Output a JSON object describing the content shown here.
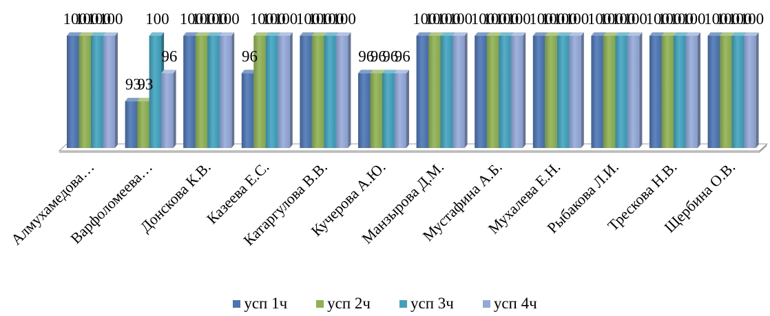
{
  "chart_data": {
    "type": "bar",
    "categories": [
      "Алмухамедова…",
      "Варфоломеева…",
      "Донскова К.В.",
      "Казеева Е.С.",
      "Катаргулова В.В.",
      "Кучерова А.Ю.",
      "Манзырова Д.М.",
      "Мустафина А.Б.",
      "Мухалева Е.Н.",
      "Рыбакова Л.И.",
      "Трескова Н.В.",
      "Щербина О.В."
    ],
    "series": [
      {
        "name": "усп 1ч",
        "color": "#4A74B4",
        "values": [
          100,
          93,
          100,
          96,
          100,
          96,
          100,
          100,
          100,
          100,
          100,
          100
        ]
      },
      {
        "name": "усп 2ч",
        "color": "#8FB150",
        "values": [
          100,
          93,
          100,
          100,
          100,
          96,
          100,
          100,
          100,
          100,
          100,
          100
        ]
      },
      {
        "name": "усп 3ч",
        "color": "#3FA2BE",
        "values": [
          100,
          100,
          100,
          100,
          100,
          96,
          100,
          100,
          100,
          100,
          100,
          100
        ]
      },
      {
        "name": "усп 4ч",
        "color": "#93A9DA",
        "values": [
          100,
          96,
          100,
          100,
          100,
          96,
          100,
          100,
          100,
          100,
          100,
          100
        ]
      }
    ],
    "ylim": [
      88,
      100
    ],
    "data_labels": true,
    "grid": false,
    "legend": "bottom"
  }
}
